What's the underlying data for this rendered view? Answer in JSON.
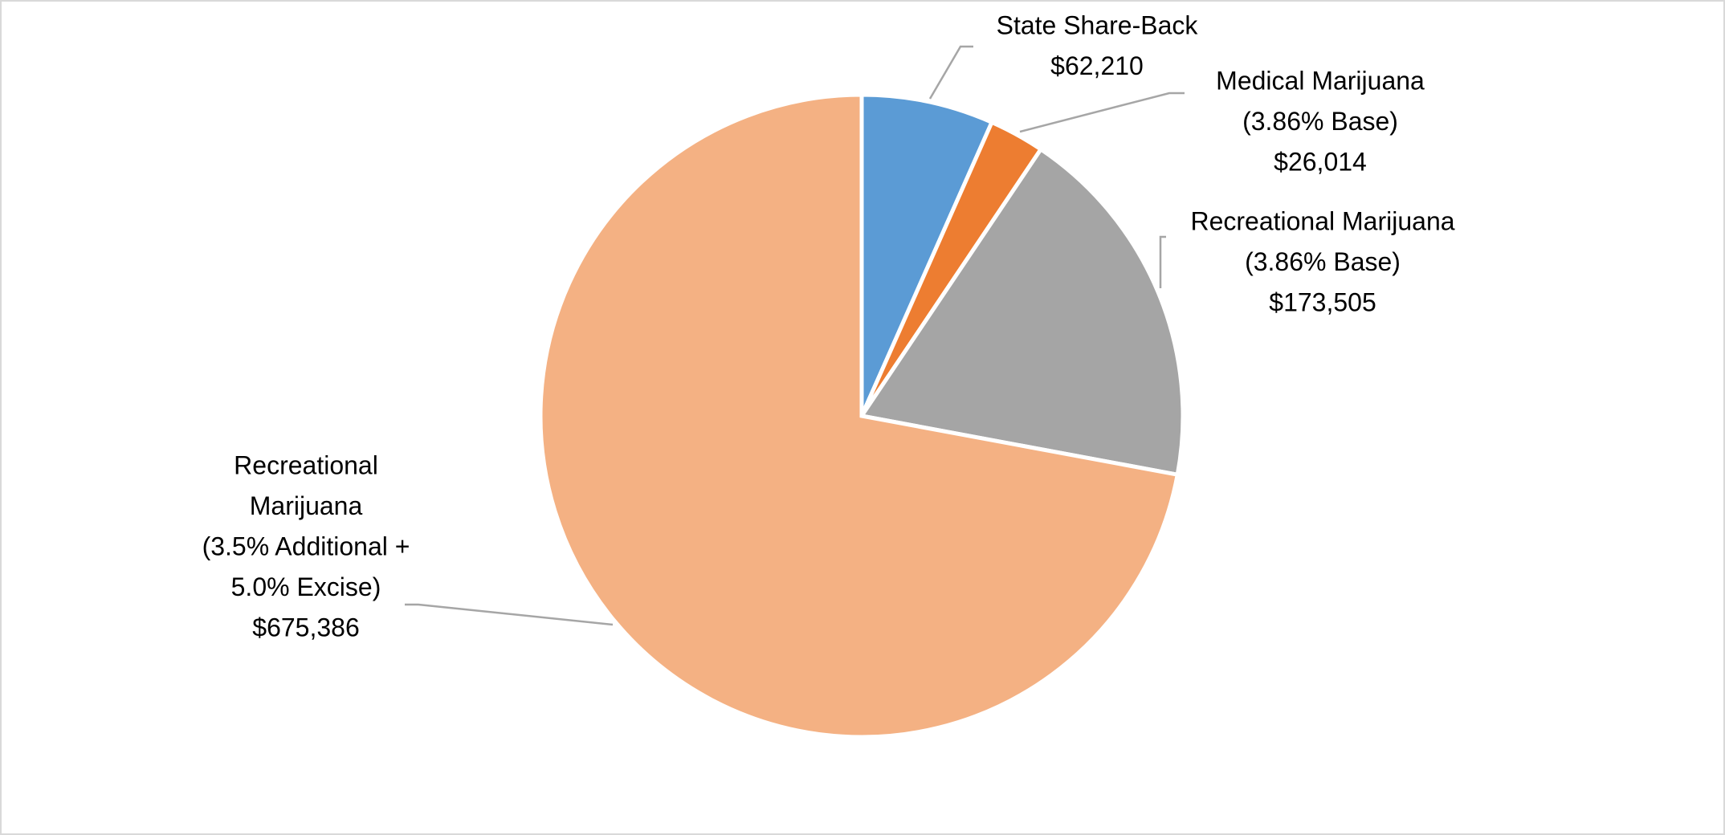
{
  "chart_data": {
    "type": "pie",
    "categories": [
      [
        "State Share-Back"
      ],
      [
        "Medical Marijuana",
        "(3.86% Base)"
      ],
      [
        "Recreational Marijuana",
        "(3.86% Base)"
      ],
      [
        "Recreational",
        "Marijuana",
        "(3.5% Additional +",
        "5.0% Excise)"
      ]
    ],
    "values": [
      62210,
      26014,
      173505,
      675386
    ],
    "value_labels": [
      "$62,210",
      "$26,014",
      "$173,505",
      "$675,386"
    ],
    "colors": [
      "#5b9bd5",
      "#ed7d31",
      "#a5a5a5",
      "#f4b183"
    ]
  }
}
